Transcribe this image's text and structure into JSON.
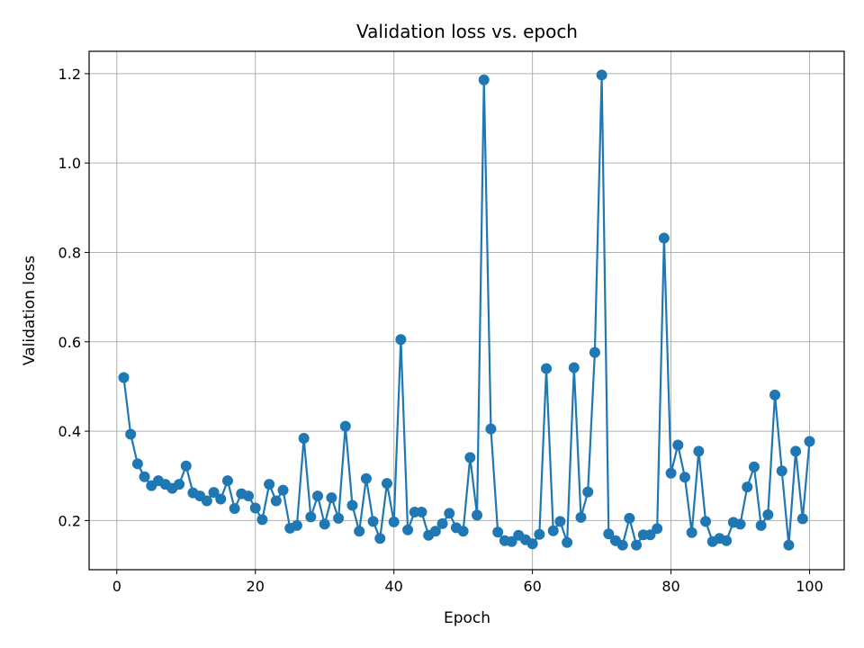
{
  "chart_data": {
    "type": "line",
    "title": "Validation loss vs. epoch",
    "xlabel": "Epoch",
    "ylabel": "Validation loss",
    "xlim": [
      -4,
      105
    ],
    "ylim": [
      0.09,
      1.25
    ],
    "xticks": [
      0,
      20,
      40,
      60,
      80,
      100
    ],
    "yticks": [
      0.2,
      0.4,
      0.6,
      0.8,
      1.0,
      1.2
    ],
    "xtick_labels": [
      "0",
      "20",
      "40",
      "60",
      "80",
      "100"
    ],
    "ytick_labels": [
      "0.2",
      "0.4",
      "0.6",
      "0.8",
      "1.0",
      "1.2"
    ],
    "grid": true,
    "color": "#1f77b4",
    "marker": "circle",
    "x": [
      1,
      2,
      3,
      4,
      5,
      6,
      7,
      8,
      9,
      10,
      11,
      12,
      13,
      14,
      15,
      16,
      17,
      18,
      19,
      20,
      21,
      22,
      23,
      24,
      25,
      26,
      27,
      28,
      29,
      30,
      31,
      32,
      33,
      34,
      35,
      36,
      37,
      38,
      39,
      40,
      41,
      42,
      43,
      44,
      45,
      46,
      47,
      48,
      49,
      50,
      51,
      52,
      53,
      54,
      55,
      56,
      57,
      58,
      59,
      60,
      61,
      62,
      63,
      64,
      65,
      66,
      67,
      68,
      69,
      70,
      71,
      72,
      73,
      74,
      75,
      76,
      77,
      78,
      79,
      80,
      81,
      82,
      83,
      84,
      85,
      86,
      87,
      88,
      89,
      90,
      91,
      92,
      93,
      94,
      95,
      96,
      97,
      98,
      99,
      100
    ],
    "y": [
      0.52,
      0.393,
      0.327,
      0.298,
      0.278,
      0.289,
      0.281,
      0.272,
      0.281,
      0.322,
      0.262,
      0.255,
      0.244,
      0.263,
      0.248,
      0.289,
      0.227,
      0.26,
      0.255,
      0.228,
      0.202,
      0.281,
      0.244,
      0.268,
      0.183,
      0.189,
      0.384,
      0.208,
      0.255,
      0.192,
      0.251,
      0.205,
      0.411,
      0.234,
      0.176,
      0.294,
      0.198,
      0.16,
      0.283,
      0.197,
      0.605,
      0.179,
      0.219,
      0.219,
      0.167,
      0.176,
      0.193,
      0.216,
      0.184,
      0.176,
      0.341,
      0.212,
      1.186,
      0.405,
      0.174,
      0.155,
      0.153,
      0.167,
      0.157,
      0.148,
      0.169,
      0.54,
      0.177,
      0.198,
      0.151,
      0.542,
      0.207,
      0.264,
      0.576,
      1.197,
      0.17,
      0.155,
      0.145,
      0.205,
      0.145,
      0.168,
      0.168,
      0.182,
      0.832,
      0.306,
      0.369,
      0.297,
      0.173,
      0.355,
      0.198,
      0.153,
      0.16,
      0.155,
      0.196,
      0.192,
      0.275,
      0.32,
      0.189,
      0.213,
      0.481,
      0.311,
      0.145,
      0.355,
      0.204,
      0.377
    ]
  }
}
